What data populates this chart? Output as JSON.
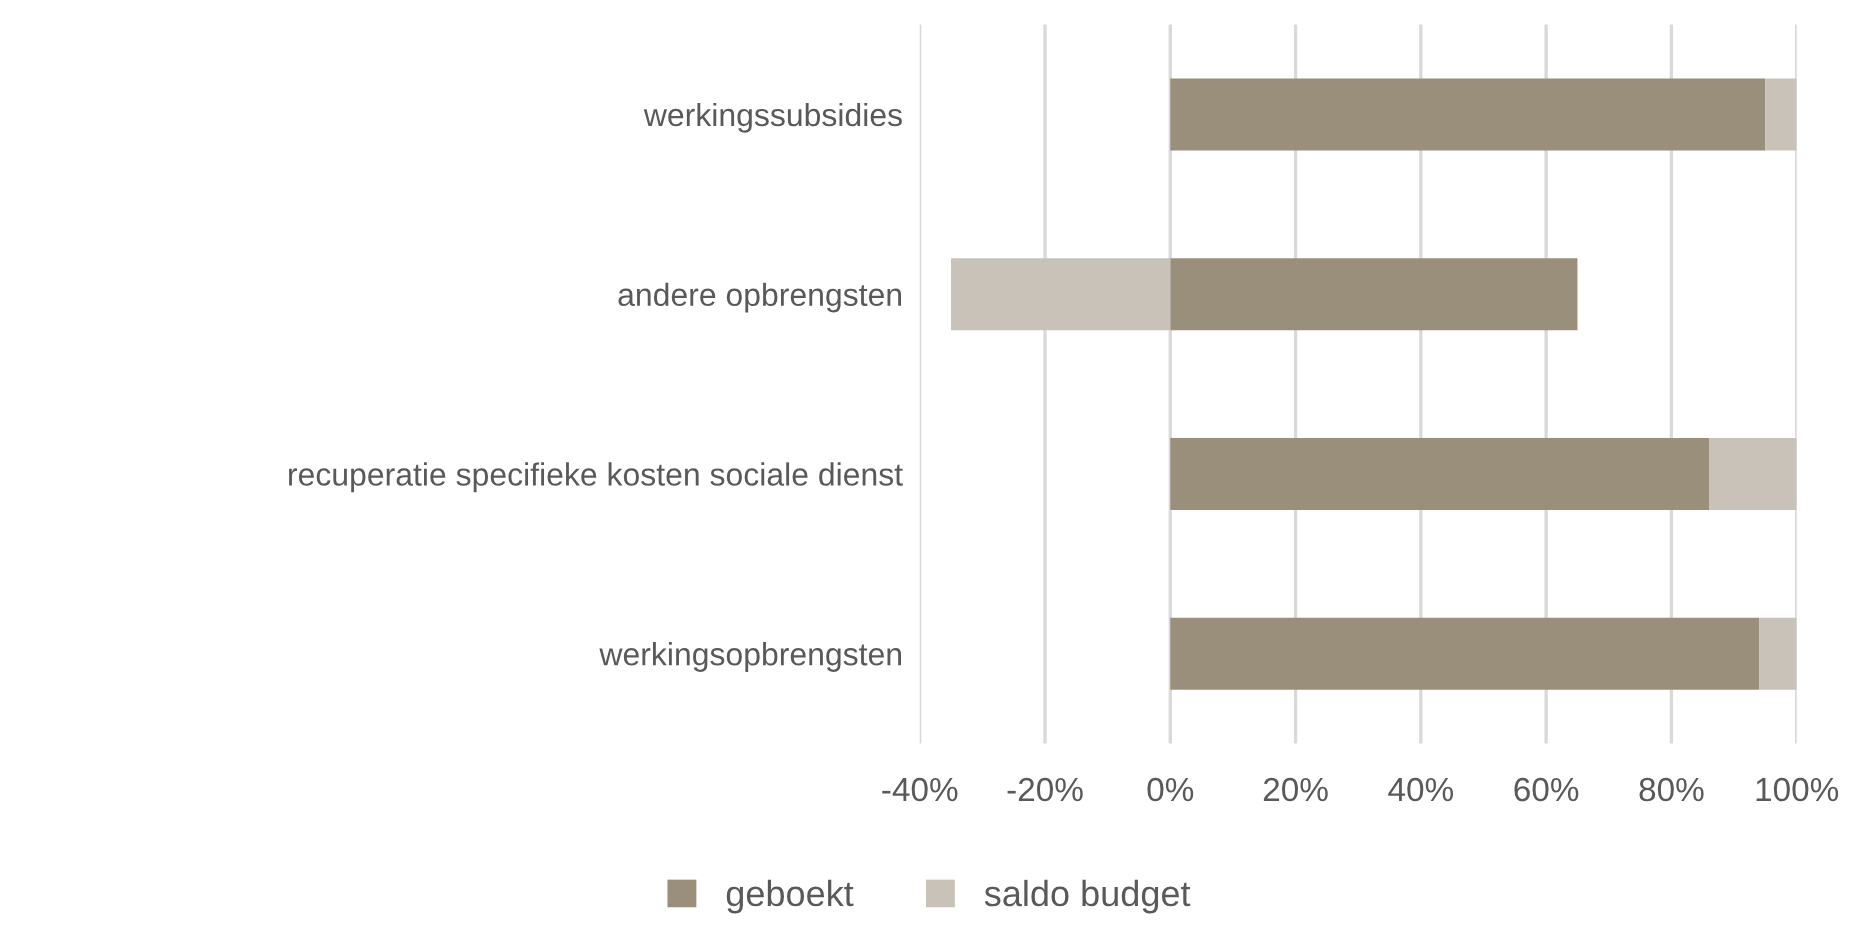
{
  "chart_data": {
    "type": "bar",
    "orientation": "horizontal",
    "stacked": true,
    "categories": [
      "werkingssubsidies",
      "andere opbrengsten",
      "recuperatie specifieke kosten sociale dienst",
      "werkingsopbrengsten"
    ],
    "series": [
      {
        "name": "geboekt",
        "color": "#9a8f7b",
        "values": [
          95,
          65,
          86,
          94
        ]
      },
      {
        "name": "saldo budget",
        "color": "#c9c2b8",
        "values": [
          5,
          -35,
          14,
          6
        ]
      }
    ],
    "xlim": [
      -40,
      100
    ],
    "xticks": [
      {
        "value": -40,
        "label": "-40%"
      },
      {
        "value": -20,
        "label": "-20%"
      },
      {
        "value": 0,
        "label": "0%"
      },
      {
        "value": 20,
        "label": "20%"
      },
      {
        "value": 40,
        "label": "40%"
      },
      {
        "value": 60,
        "label": "60%"
      },
      {
        "value": 80,
        "label": "80%"
      },
      {
        "value": 100,
        "label": "100%"
      }
    ],
    "grid": "x",
    "legend": "bottom"
  }
}
